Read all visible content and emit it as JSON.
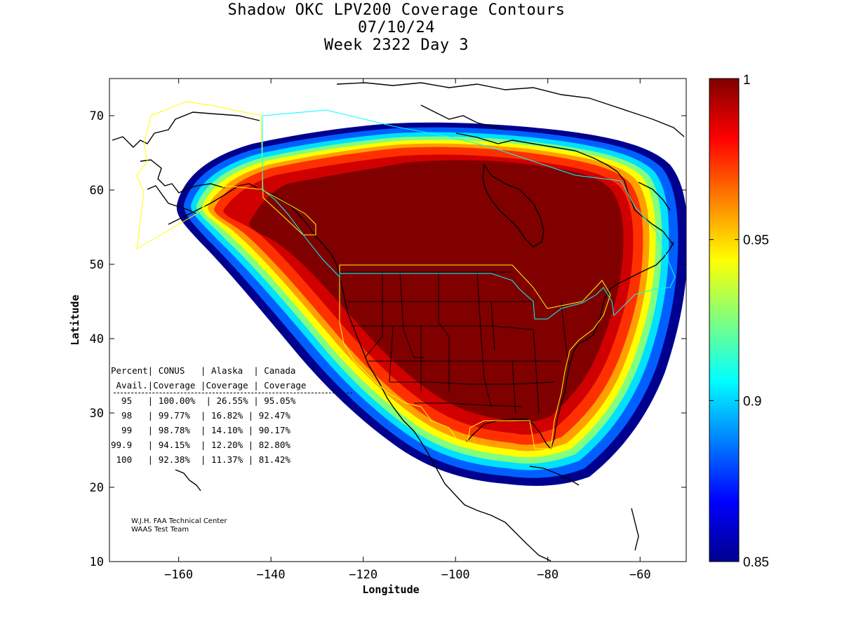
{
  "title": {
    "line1": "Shadow OKC LPV200 Coverage Contours",
    "line2": "07/10/24",
    "line3": "Week 2322 Day 3"
  },
  "axes": {
    "xlabel": "Longitude",
    "ylabel": "Latitude",
    "xlim": [
      -175,
      -50
    ],
    "ylim": [
      10,
      75
    ],
    "xticks": [
      -160,
      -140,
      -120,
      -100,
      -80,
      -60
    ],
    "yticks": [
      10,
      20,
      30,
      40,
      50,
      60,
      70
    ]
  },
  "colorbar": {
    "min": 0.85,
    "max": 1,
    "ticks": [
      "1",
      "0.95",
      "0.9",
      "0.85"
    ],
    "colormap": "jet"
  },
  "stats_table": {
    "header1": "Percent| CONUS   | Alaska  | Canada",
    "header2": " Avail.|Coverage |Coverage | Coverage",
    "separator": "------------------------------------------",
    "rows": [
      "  95   | 100.00%  | 26.55% | 95.05%",
      "  98   | 99.77%  | 16.82% | 92.47%",
      "  99   | 98.78%  | 14.10% | 90.17%",
      "99.9   | 94.15%  | 12.20% | 82.80%",
      " 100   | 92.38%  | 11.37% | 81.42%"
    ]
  },
  "credit": {
    "line1": "W.J.H. FAA Technical Center",
    "line2": "WAAS Test Team"
  },
  "colors": {
    "core": "#800000",
    "boundary_conus_alaska": "#ffff00",
    "boundary_canada": "#00ffff",
    "coast": "#000000"
  }
}
